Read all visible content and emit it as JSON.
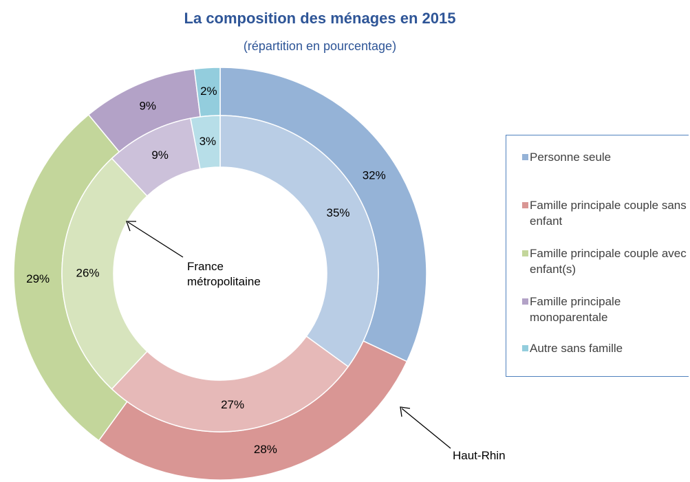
{
  "chart_data": {
    "type": "donut",
    "title": "La composition des ménages en 2015",
    "subtitle": "(répartition en pourcentage)",
    "categories": [
      "Personne seule",
      "Famille principale couple sans enfant",
      "Famille principale couple avec enfant(s)",
      "Famille principale monoparentale",
      "Autre sans famille"
    ],
    "series": [
      {
        "name": "Haut-Rhin",
        "colors": [
          "#95b3d7",
          "#d99694",
          "#c3d69b",
          "#b3a2c7",
          "#93cddd"
        ],
        "values": [
          32,
          28,
          29,
          9,
          2
        ],
        "value_labels": [
          "32%",
          "28%",
          "29%",
          "9%",
          "2%"
        ]
      },
      {
        "name": "France métropolitaine",
        "colors": [
          "#b9cde5",
          "#e6b9b8",
          "#d7e4bd",
          "#ccc1da",
          "#b7dee8"
        ],
        "values": [
          35,
          27,
          26,
          9,
          3
        ],
        "value_labels": [
          "35%",
          "27%",
          "26%",
          "9%",
          "3%"
        ]
      }
    ]
  }
}
